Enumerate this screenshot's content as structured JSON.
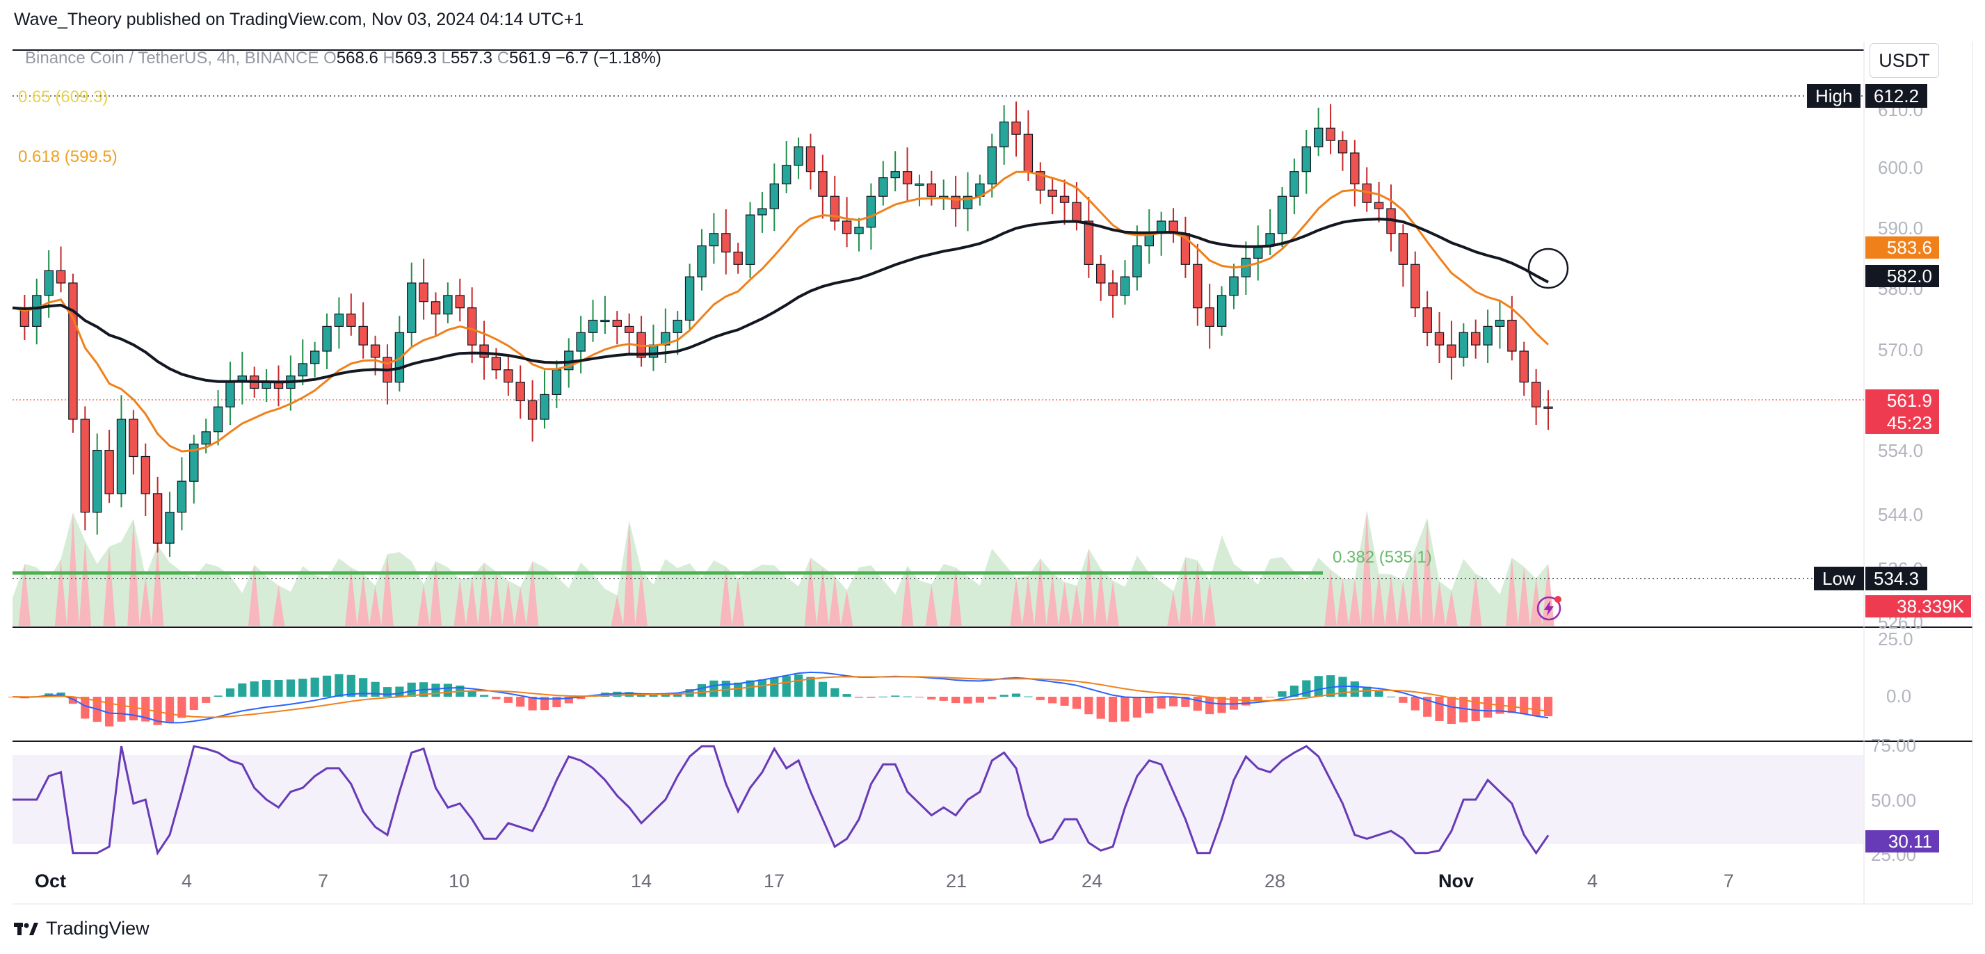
{
  "publisher": "Wave_Theory published on TradingView.com, Nov 03, 2024 04:14 UTC+1",
  "symbol": {
    "name": "Binance Coin / TetherUS, 4h, BINANCE",
    "o_label": "O",
    "o": "568.6",
    "h_label": "H",
    "h": "569.3",
    "l_label": "L",
    "l": "557.3",
    "c_label": "C",
    "c": "561.9",
    "change": "−6.7 (−1.18%)"
  },
  "currency_button": "USDT",
  "fib": {
    "top_label": "0.65 (609.3)",
    "mid_label": "0.618 (599.5)",
    "low_label": "0.382 (535.1)"
  },
  "price_axis": {
    "ticks": [
      "610.0",
      "600.0",
      "590.0",
      "580.0",
      "570.0",
      "554.0",
      "544.0",
      "536.0",
      "526.0"
    ],
    "high_label": "High",
    "high_value": "612.2",
    "low_label": "Low",
    "low_value": "534.3",
    "ema50": "583.6",
    "ema200": "582.0",
    "last_price": "561.9",
    "countdown": "45:23",
    "volume": "38.339K"
  },
  "macd_axis": {
    "ticks": [
      "25.0",
      "0.0"
    ]
  },
  "rsi_axis": {
    "ticks": [
      "75.00",
      "50.00",
      "25.00"
    ],
    "value": "30.11"
  },
  "x_axis": {
    "ticks": [
      "Oct",
      "4",
      "7",
      "10",
      "14",
      "17",
      "21",
      "24",
      "28",
      "Nov",
      "4",
      "7"
    ]
  },
  "footer": {
    "brand": "TradingView"
  },
  "colors": {
    "up": "#26a69a",
    "down": "#ef5350",
    "ema50": "#f0801a",
    "ema200": "#131722",
    "fib_top": "#e8d44d",
    "fib_mid": "#f0a020",
    "fib_low": "#4caf50",
    "rsi": "#673ab7"
  },
  "chart_data": {
    "type": "candlestick",
    "timeframe": "4h",
    "price_range": [
      530,
      615
    ],
    "ohlc_close": [
      578,
      575,
      580,
      584,
      582,
      560,
      545,
      555,
      548,
      560,
      554,
      548,
      540,
      545,
      550,
      556,
      558,
      562,
      566,
      567,
      565,
      566,
      565,
      567,
      569,
      571,
      575,
      577,
      575,
      572,
      570,
      566,
      574,
      582,
      579,
      577,
      580,
      578,
      572,
      570,
      568,
      566,
      563,
      560,
      564,
      568,
      571,
      574,
      576,
      576,
      575,
      574,
      570,
      572,
      574,
      576,
      583,
      588,
      590,
      587,
      585,
      593,
      594,
      598,
      601,
      604,
      600,
      596,
      592,
      590,
      591,
      596,
      599,
      600,
      598,
      598,
      596,
      596,
      594,
      596,
      598,
      604,
      608,
      606,
      600,
      597,
      596,
      595,
      592,
      585,
      582,
      580,
      583,
      588,
      590,
      592,
      590,
      585,
      578,
      575,
      580,
      583,
      586,
      588,
      590,
      596,
      600,
      604,
      607,
      605,
      603,
      598,
      595,
      594,
      590,
      585,
      578,
      574,
      572,
      570,
      574,
      572,
      575,
      576,
      571,
      566,
      562,
      561.9
    ],
    "ema50_end": 583.6,
    "ema200_end": 582.0,
    "high": 612.2,
    "low": 534.3,
    "last": 561.9,
    "volume_last": "38.339K",
    "rsi_last": 30.11
  }
}
